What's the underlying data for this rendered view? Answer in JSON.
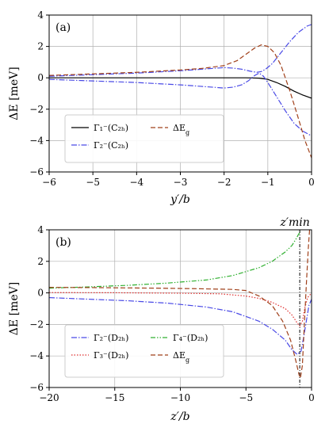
{
  "chart_data": [
    {
      "type": "line",
      "panel_label": "(a)",
      "xlabel": "y′/b",
      "ylabel": "ΔE  [meV]",
      "xlim": [
        -6,
        0
      ],
      "ylim": [
        -6,
        4
      ],
      "xticks": [
        -6,
        -5,
        -4,
        -3,
        -2,
        -1,
        0
      ],
      "yticks": [
        -6,
        -4,
        -2,
        0,
        2,
        4
      ],
      "grid": true,
      "legend_position": "lower-left",
      "series": [
        {
          "name": "Γ₁⁻(C₂ₕ)",
          "color": "#000000",
          "dash": "solid",
          "points": [
            [
              -6,
              0.0
            ],
            [
              -5,
              0.0
            ],
            [
              -4,
              0.0
            ],
            [
              -3,
              0.0
            ],
            [
              -2,
              0.0
            ],
            [
              -1.5,
              0.0
            ],
            [
              -1.2,
              -0.02
            ],
            [
              -1.0,
              -0.1
            ],
            [
              -0.8,
              -0.3
            ],
            [
              -0.6,
              -0.55
            ],
            [
              -0.4,
              -0.85
            ],
            [
              -0.2,
              -1.1
            ],
            [
              0,
              -1.3
            ]
          ]
        },
        {
          "name": "Γ₂⁻(C₂ₕ)",
          "color": "#4a4ae6",
          "dash": "dashdot",
          "points": [
            [
              -6,
              0.1
            ],
            [
              -5,
              0.2
            ],
            [
              -4,
              0.3
            ],
            [
              -3,
              0.45
            ],
            [
              -2.5,
              0.55
            ],
            [
              -2,
              0.65
            ],
            [
              -1.8,
              0.62
            ],
            [
              -1.6,
              0.55
            ],
            [
              -1.4,
              0.42
            ],
            [
              -1.25,
              0.35
            ],
            [
              -1.15,
              0.4
            ],
            [
              -1.05,
              0.55
            ],
            [
              -0.9,
              0.9
            ],
            [
              -0.7,
              1.6
            ],
            [
              -0.5,
              2.3
            ],
            [
              -0.3,
              2.9
            ],
            [
              -0.1,
              3.3
            ],
            [
              0,
              3.4
            ],
            "break",
            [
              -6,
              -0.1
            ],
            [
              -5,
              -0.2
            ],
            [
              -4,
              -0.3
            ],
            [
              -3,
              -0.45
            ],
            [
              -2.5,
              -0.55
            ],
            [
              -2,
              -0.65
            ],
            [
              -1.8,
              -0.6
            ],
            [
              -1.6,
              -0.45
            ],
            [
              -1.45,
              -0.2
            ],
            [
              -1.3,
              0.15
            ],
            [
              -1.2,
              0.3
            ],
            [
              -1.1,
              0.1
            ],
            [
              -1.0,
              -0.3
            ],
            [
              -0.8,
              -1.2
            ],
            [
              -0.6,
              -2.1
            ],
            [
              -0.4,
              -2.9
            ],
            [
              -0.2,
              -3.4
            ],
            [
              0,
              -3.7
            ]
          ]
        },
        {
          "name": "ΔE_g",
          "color": "#a0401a",
          "dash": "dashed",
          "points": [
            [
              -6,
              0.15
            ],
            [
              -5,
              0.25
            ],
            [
              -4,
              0.35
            ],
            [
              -3,
              0.5
            ],
            [
              -2.5,
              0.6
            ],
            [
              -2,
              0.78
            ],
            [
              -1.7,
              1.1
            ],
            [
              -1.5,
              1.5
            ],
            [
              -1.3,
              1.9
            ],
            [
              -1.15,
              2.1
            ],
            [
              -1.0,
              2.0
            ],
            [
              -0.85,
              1.6
            ],
            [
              -0.7,
              0.8
            ],
            [
              -0.5,
              -0.8
            ],
            [
              -0.3,
              -2.6
            ],
            [
              -0.15,
              -4.0
            ],
            [
              0,
              -5.1
            ]
          ]
        }
      ]
    },
    {
      "type": "line",
      "panel_label": "(b)",
      "xlabel": "z′/b",
      "ylabel": "ΔE  [meV]",
      "xlim": [
        -20,
        0
      ],
      "ylim": [
        -6,
        4
      ],
      "xticks": [
        -20,
        -15,
        -10,
        -5,
        0
      ],
      "yticks": [
        -6,
        -4,
        -2,
        0,
        2,
        4
      ],
      "grid": true,
      "legend_position": "lower-left",
      "annotation": "z′min",
      "vline_x": -0.9,
      "series": [
        {
          "name": "Γ₂⁻(D₂ₕ)",
          "color": "#4a4ae6",
          "dash": "dashdot",
          "points": [
            [
              -20,
              -0.3
            ],
            [
              -17,
              -0.4
            ],
            [
              -14,
              -0.5
            ],
            [
              -11,
              -0.65
            ],
            [
              -8,
              -0.9
            ],
            [
              -6,
              -1.2
            ],
            [
              -4,
              -1.8
            ],
            [
              -3,
              -2.3
            ],
            [
              -2,
              -3.0
            ],
            [
              -1.5,
              -3.6
            ],
            [
              -1.1,
              -3.9
            ],
            [
              -0.8,
              -3.7
            ],
            [
              -0.6,
              -2.8
            ],
            [
              -0.4,
              -1.8
            ],
            [
              -0.2,
              -0.8
            ],
            [
              0,
              -0.4
            ]
          ]
        },
        {
          "name": "Γ₃⁻(D₂ₕ)",
          "color": "#e03030",
          "dash": "dotted",
          "points": [
            [
              -20,
              0.02
            ],
            [
              -15,
              0.01
            ],
            [
              -10,
              -0.02
            ],
            [
              -7,
              -0.06
            ],
            [
              -5,
              -0.2
            ],
            [
              -4,
              -0.35
            ],
            [
              -3,
              -0.6
            ],
            [
              -2,
              -1.0
            ],
            [
              -1.5,
              -1.4
            ],
            [
              -1.1,
              -1.9
            ],
            [
              -0.9,
              -2.1
            ],
            [
              -0.7,
              -1.8
            ],
            [
              -0.5,
              -0.9
            ],
            [
              -0.3,
              -0.3
            ],
            [
              0,
              0.0
            ]
          ]
        },
        {
          "name": "Γ₄⁻(D₂ₕ)",
          "color": "#30b030",
          "dash": "dashdotdot",
          "points": [
            [
              -20,
              0.3
            ],
            [
              -17,
              0.38
            ],
            [
              -14,
              0.48
            ],
            [
              -11,
              0.62
            ],
            [
              -8,
              0.82
            ],
            [
              -6,
              1.1
            ],
            [
              -4,
              1.6
            ],
            [
              -3,
              2.0
            ],
            [
              -2,
              2.6
            ],
            [
              -1.5,
              3.0
            ],
            [
              -1.2,
              3.4
            ],
            [
              -1.0,
              3.7
            ],
            [
              -0.85,
              3.9
            ]
          ]
        },
        {
          "name": "ΔE_g",
          "color": "#a0401a",
          "dash": "dashed",
          "points": [
            [
              -20,
              0.35
            ],
            [
              -16,
              0.33
            ],
            [
              -12,
              0.3
            ],
            [
              -9,
              0.27
            ],
            [
              -6,
              0.22
            ],
            [
              -5,
              0.15
            ],
            [
              -4,
              -0.2
            ],
            [
              -3,
              -0.8
            ],
            [
              -2.2,
              -1.8
            ],
            [
              -1.6,
              -3.0
            ],
            [
              -1.2,
              -4.3
            ],
            [
              -0.95,
              -5.2
            ],
            [
              -0.85,
              -5.4
            ],
            [
              -0.7,
              -4.6
            ],
            [
              -0.55,
              -2.0
            ],
            [
              -0.4,
              0.5
            ],
            [
              -0.25,
              2.8
            ],
            [
              -0.15,
              4.0
            ]
          ]
        }
      ]
    }
  ]
}
